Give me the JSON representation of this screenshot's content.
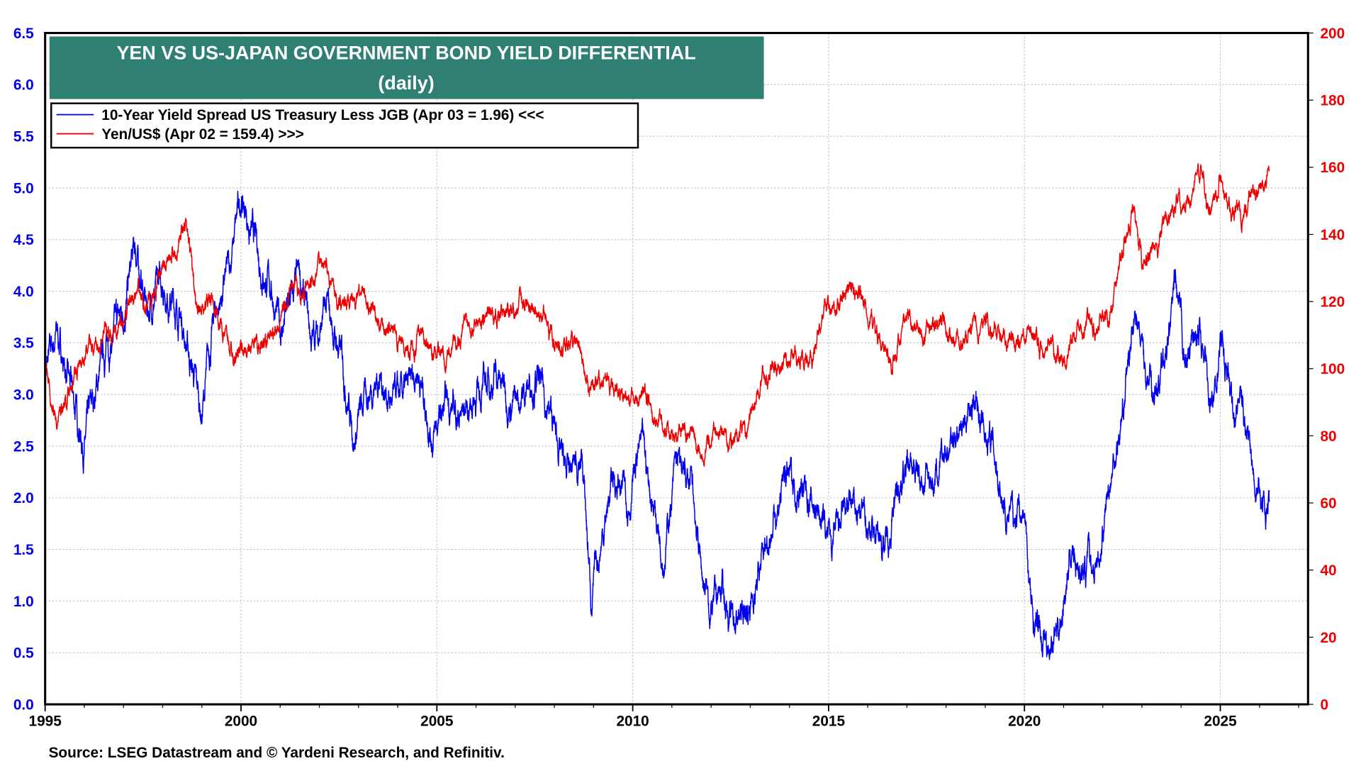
{
  "chart_data": {
    "type": "line",
    "title": "YEN VS US-JAPAN GOVERNMENT BOND YIELD DIFFERENTIAL",
    "subtitle": "(daily)",
    "source": "Source: LSEG Datastream and © Yardeni Research, and Refinitiv.",
    "xlim": [
      1995,
      2027.24
    ],
    "x_ticks": [
      "1995",
      "2000",
      "2005",
      "2010",
      "2015",
      "2020",
      "2025"
    ],
    "y_left": {
      "lim": [
        0,
        6.5
      ],
      "ticks": [
        "0.0",
        "0.5",
        "1.0",
        "1.5",
        "2.0",
        "2.5",
        "3.0",
        "3.5",
        "4.0",
        "4.5",
        "5.0",
        "5.5",
        "6.0",
        "6.5"
      ],
      "color": "#0000ee"
    },
    "y_right": {
      "lim": [
        0,
        200
      ],
      "ticks": [
        "0",
        "20",
        "40",
        "60",
        "80",
        "100",
        "120",
        "140",
        "160",
        "180",
        "200"
      ],
      "color": "#ee0000"
    },
    "grid": true,
    "legend_placement": "top-left",
    "title_box_color": "#2f7f72",
    "series": [
      {
        "name": "10-Year Yield Spread US Treasury Less JGB (Apr 03 = 1.96) <<<",
        "axis": "left",
        "color": "#0000ee",
        "x": [
          1995.0,
          1995.3,
          1995.6,
          1996.0,
          1996.5,
          1997.0,
          1997.3,
          1997.6,
          1998.0,
          1998.5,
          1999.0,
          1999.3,
          1999.7,
          2000.0,
          2000.4,
          2000.8,
          2001.0,
          2001.5,
          2001.8,
          2002.2,
          2002.6,
          2002.9,
          2003.2,
          2003.5,
          2003.9,
          2004.3,
          2004.5,
          2004.9,
          2005.3,
          2005.6,
          2006.0,
          2006.5,
          2007.0,
          2007.5,
          2007.9,
          2008.3,
          2008.7,
          2008.95,
          2009.2,
          2009.5,
          2009.9,
          2010.2,
          2010.5,
          2010.8,
          2011.1,
          2011.5,
          2011.8,
          2012.0,
          2012.3,
          2012.5,
          2012.9,
          2013.2,
          2013.5,
          2013.9,
          2014.3,
          2014.7,
          2015.1,
          2015.5,
          2015.9,
          2016.5,
          2016.9,
          2017.3,
          2017.8,
          2018.3,
          2018.8,
          2019.2,
          2019.6,
          2020.0,
          2020.2,
          2020.6,
          2020.9,
          2021.2,
          2021.5,
          2021.9,
          2022.2,
          2022.5,
          2022.8,
          2023.0,
          2023.3,
          2023.7,
          2023.85,
          2024.1,
          2024.5,
          2024.8,
          2025.0,
          2025.3,
          2025.5,
          2025.8,
          2026.1,
          2026.25
        ],
        "y": [
          3.2,
          3.6,
          3.1,
          2.5,
          3.4,
          3.8,
          4.4,
          3.8,
          4.1,
          3.7,
          2.8,
          3.7,
          4.2,
          4.9,
          4.4,
          4.0,
          3.6,
          4.1,
          3.5,
          3.8,
          3.3,
          2.6,
          3.0,
          3.2,
          2.9,
          3.0,
          3.3,
          2.6,
          2.9,
          2.8,
          3.0,
          3.2,
          2.9,
          3.2,
          2.8,
          2.2,
          2.4,
          1.0,
          1.6,
          2.2,
          2.0,
          2.5,
          2.0,
          1.5,
          2.3,
          2.1,
          1.2,
          0.9,
          1.1,
          0.8,
          0.9,
          1.2,
          1.7,
          2.2,
          2.1,
          1.9,
          1.5,
          1.9,
          1.8,
          1.6,
          2.3,
          2.2,
          2.2,
          2.7,
          2.9,
          2.5,
          1.8,
          1.8,
          0.8,
          0.6,
          0.8,
          1.5,
          1.3,
          1.4,
          2.2,
          2.8,
          3.8,
          3.4,
          3.0,
          3.5,
          4.0,
          3.3,
          3.6,
          2.9,
          3.5,
          2.9,
          3.0,
          2.5,
          1.9,
          1.96
        ]
      },
      {
        "name": "Yen/US$ (Apr 02 = 159.4) >>>",
        "axis": "right",
        "color": "#ee0000",
        "x": [
          1995.0,
          1995.3,
          1995.7,
          1996.0,
          1996.5,
          1997.0,
          1997.3,
          1997.7,
          1998.0,
          1998.6,
          1998.9,
          1999.3,
          1999.7,
          2000.0,
          2000.5,
          2000.9,
          2001.2,
          2001.6,
          2002.1,
          2002.5,
          2002.9,
          2003.3,
          2003.8,
          2004.2,
          2004.6,
          2004.9,
          2005.3,
          2005.8,
          2006.3,
          2006.8,
          2007.4,
          2007.8,
          2008.2,
          2008.6,
          2008.9,
          2009.3,
          2009.8,
          2010.3,
          2010.8,
          2011.3,
          2011.8,
          2012.2,
          2012.6,
          2012.9,
          2013.3,
          2013.7,
          2014.0,
          2014.6,
          2014.9,
          2015.5,
          2015.8,
          2016.2,
          2016.6,
          2016.9,
          2017.4,
          2017.9,
          2018.3,
          2018.9,
          2019.3,
          2019.7,
          2020.0,
          2020.5,
          2021.0,
          2021.3,
          2021.8,
          2022.2,
          2022.5,
          2022.8,
          2023.0,
          2023.3,
          2023.6,
          2023.9,
          2024.2,
          2024.5,
          2024.7,
          2025.0,
          2025.3,
          2025.6,
          2025.9,
          2026.1,
          2026.25
        ],
        "y": [
          100,
          84,
          98,
          104,
          109,
          114,
          122,
          118,
          130,
          142,
          118,
          120,
          106,
          105,
          107,
          110,
          122,
          122,
          133,
          120,
          122,
          118,
          112,
          106,
          110,
          103,
          106,
          115,
          116,
          118,
          122,
          114,
          103,
          108,
          93,
          97,
          90,
          92,
          83,
          82,
          77,
          81,
          78,
          82,
          97,
          99,
          104,
          102,
          118,
          123,
          121,
          112,
          102,
          115,
          111,
          113,
          107,
          113,
          111,
          107,
          109,
          107,
          104,
          109,
          114,
          116,
          135,
          147,
          131,
          134,
          143,
          150,
          150,
          160,
          143,
          157,
          146,
          146,
          154,
          155,
          159.4
        ]
      }
    ]
  }
}
